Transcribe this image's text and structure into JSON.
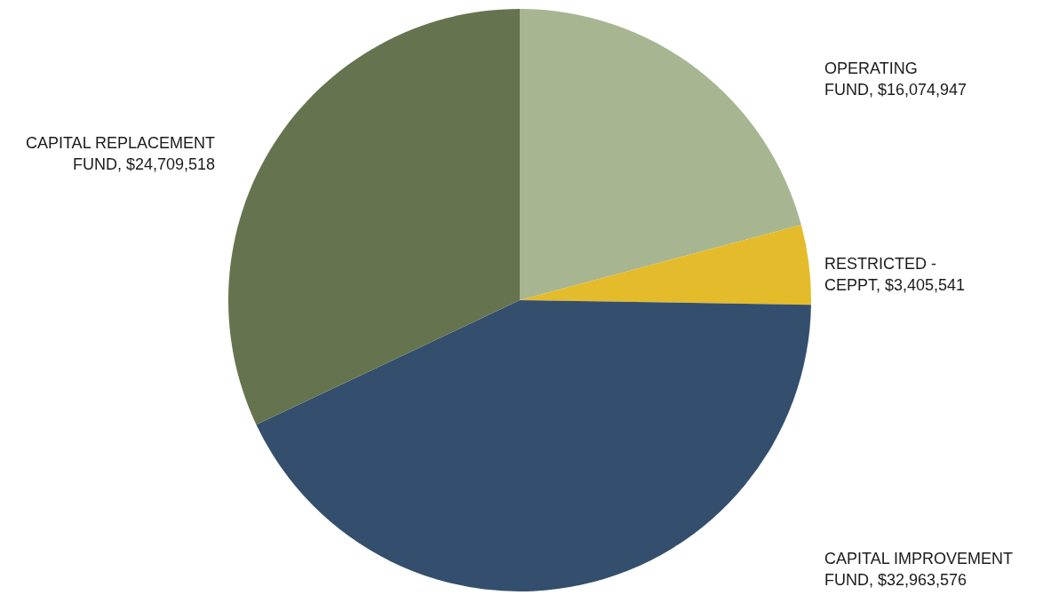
{
  "chart_data": {
    "type": "pie",
    "categories": [
      "OPERATING FUND",
      "RESTRICTED - CEPPT",
      "CAPITAL IMPROVEMENT FUND",
      "CAPITAL REPLACEMENT FUND"
    ],
    "values": [
      16074947,
      3405541,
      32963576,
      24709518
    ],
    "value_labels": [
      "$16,074,947",
      "$3,405,541",
      "$32,963,576",
      "$24,709,518"
    ],
    "colors": [
      "#a7b591",
      "#e4bb2a",
      "#344f6d",
      "#65744f"
    ]
  }
}
